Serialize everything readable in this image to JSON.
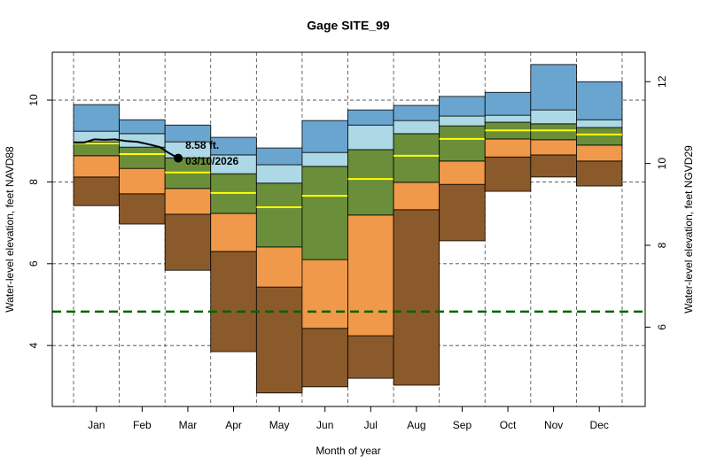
{
  "chart_data": {
    "type": "percentile_bands",
    "title": "Gage SITE_99",
    "xlabel": "Month of year",
    "ylabel": "Water-level elevation, feet NAVD88",
    "y2label": "Water-level elevation, feet NGVD29",
    "categories": [
      "Jan",
      "Feb",
      "Mar",
      "Apr",
      "May",
      "Jun",
      "Jul",
      "Aug",
      "Sep",
      "Oct",
      "Nov",
      "Dec"
    ],
    "levels": [
      {
        "values": [
          7.42,
          6.97,
          5.84,
          3.85,
          2.84,
          2.99,
          3.2,
          3.03,
          6.56,
          7.77,
          8.12,
          7.9
        ]
      },
      {
        "values": [
          8.12,
          7.71,
          7.21,
          6.3,
          5.43,
          4.42,
          4.24,
          7.32,
          7.94,
          8.61,
          8.66,
          8.51
        ]
      },
      {
        "values": [
          8.64,
          8.33,
          7.84,
          7.23,
          6.41,
          6.1,
          7.19,
          7.99,
          8.51,
          9.05,
          9.03,
          8.9
        ]
      },
      {
        "values": [
          8.98,
          8.85,
          8.59,
          8.2,
          7.97,
          8.38,
          8.79,
          9.18,
          9.37,
          9.46,
          9.42,
          9.33
        ]
      },
      {
        "values": [
          9.24,
          9.18,
          8.98,
          8.66,
          8.42,
          8.72,
          9.39,
          9.5,
          9.61,
          9.63,
          9.76,
          9.52
        ]
      },
      {
        "values": [
          9.89,
          9.52,
          9.39,
          9.09,
          8.83,
          9.5,
          9.76,
          9.87,
          10.09,
          10.19,
          10.87,
          10.45
        ]
      }
    ],
    "band_colors": [
      "#8b5a2b",
      "#f0994a",
      "#6b8e3a",
      "#add8e6",
      "#6aa5d0"
    ],
    "median": {
      "values": [
        8.94,
        8.68,
        8.23,
        7.73,
        7.38,
        7.66,
        8.07,
        8.64,
        9.05,
        9.26,
        9.26,
        9.16
      ],
      "color": "#ffff00"
    },
    "reference_line": {
      "value": 4.83,
      "color": "#006400"
    },
    "current": {
      "x": [
        "01/01/2026",
        "01/08/2026",
        "01/15/2026",
        "01/22/2026",
        "01/29/2026",
        "02/05/2026",
        "02/12/2026",
        "02/19/2026",
        "02/26/2026",
        "03/03/2026",
        "03/10/2026"
      ],
      "values": [
        8.96,
        8.96,
        9.04,
        9.03,
        9.04,
        9.0,
        8.98,
        8.92,
        8.85,
        8.72,
        8.58
      ],
      "color": "#000000"
    },
    "annotation": {
      "value": 8.58,
      "label": "8.58 ft.",
      "date": "03/10/2026"
    },
    "ylim": [
      2.51,
      11.17
    ],
    "yticks": [
      4,
      6,
      8,
      10
    ],
    "y2lim": [
      4.06,
      12.72
    ],
    "y2ticks": [
      6,
      8,
      10,
      12
    ],
    "grid": true
  }
}
